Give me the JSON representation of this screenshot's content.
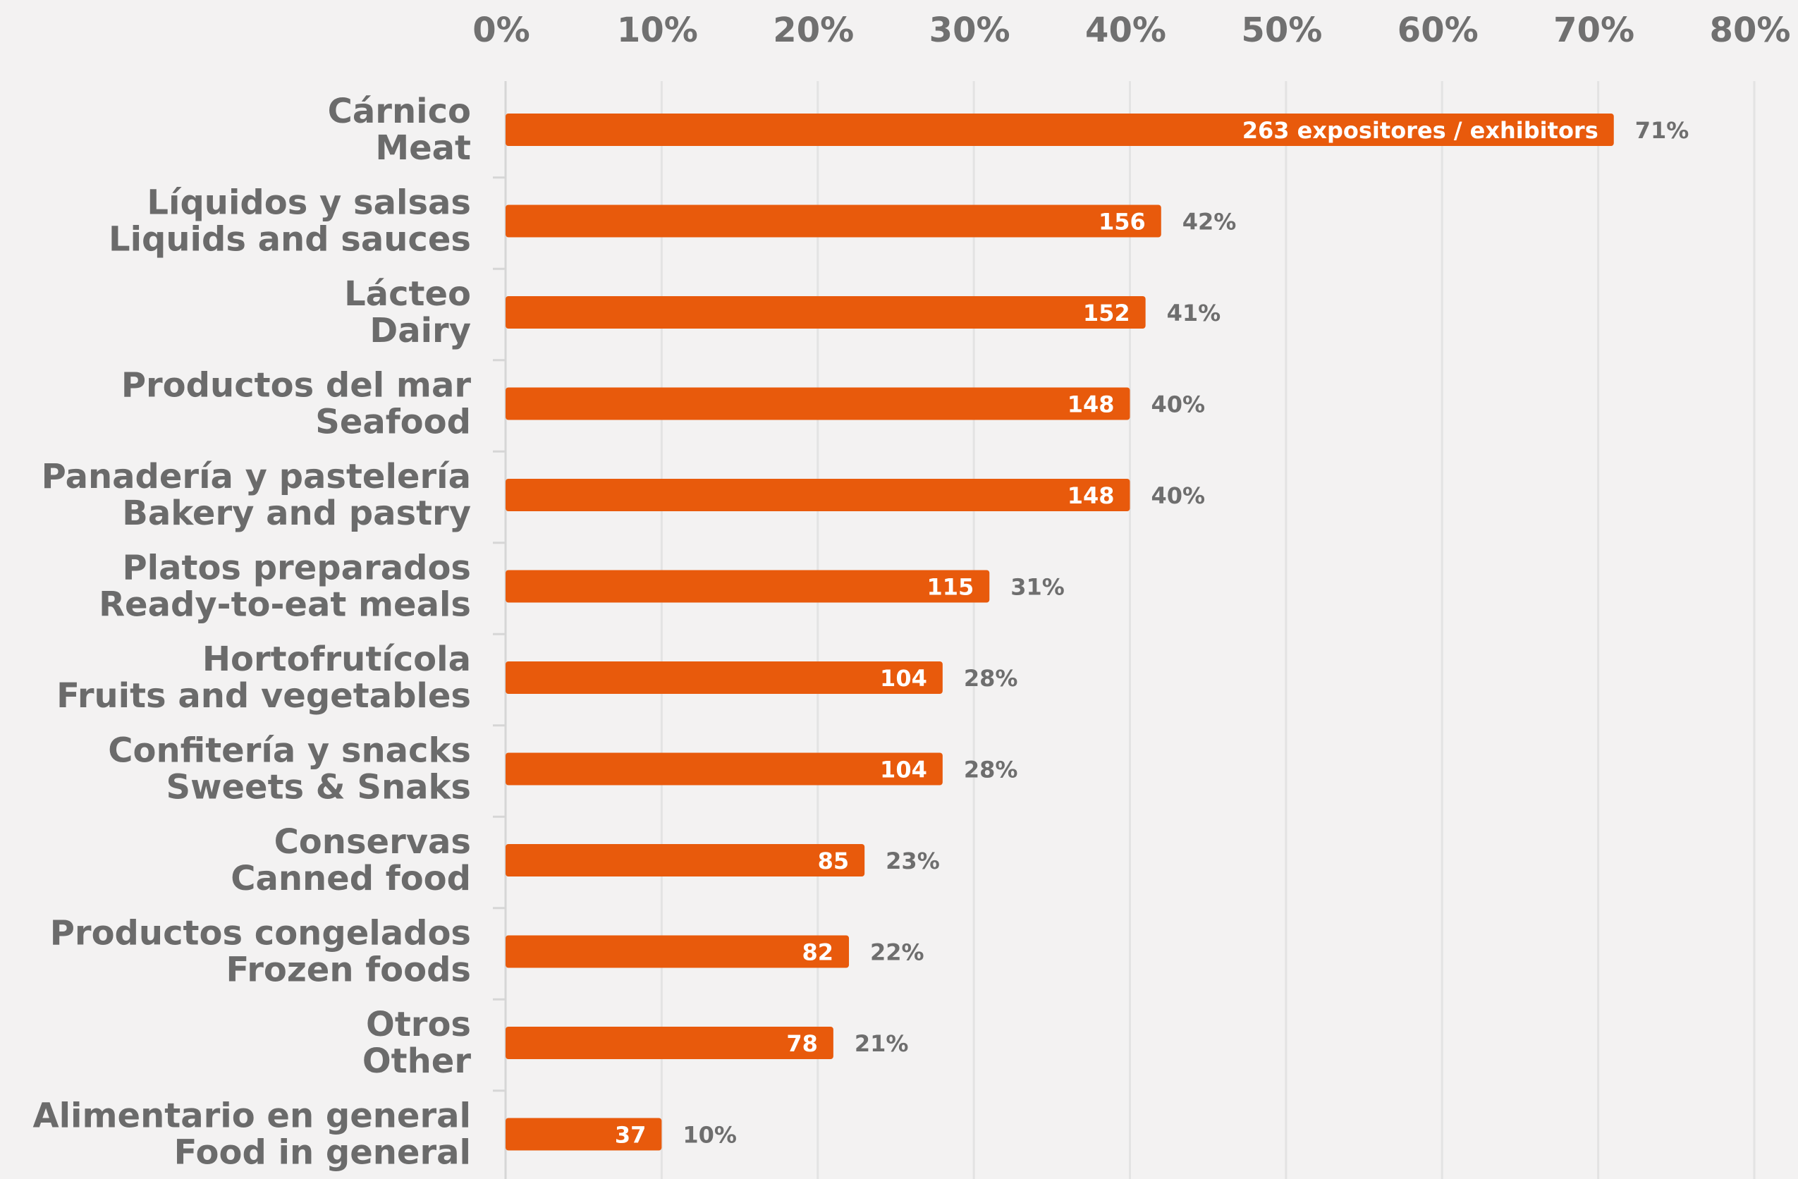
{
  "chart_data": {
    "type": "bar",
    "orientation": "horizontal",
    "x_axis": {
      "min": 0,
      "max": 80,
      "ticks": [
        "0%",
        "10%",
        "20%",
        "30%",
        "40%",
        "50%",
        "60%",
        "70%",
        "80%"
      ],
      "position": "top"
    },
    "grid": true,
    "bar_color": "#e85a0c",
    "categories": [
      {
        "es": "Cárnico",
        "en": "Meat",
        "value_pct": 71,
        "pct_label": "71%",
        "count_label": "263 expositores / exhibitors"
      },
      {
        "es": "Líquidos y salsas",
        "en": "Liquids and sauces",
        "value_pct": 42,
        "pct_label": "42%",
        "count_label": "156"
      },
      {
        "es": "Lácteo",
        "en": "Dairy",
        "value_pct": 41,
        "pct_label": "41%",
        "count_label": "152"
      },
      {
        "es": "Productos del mar",
        "en": "Seafood",
        "value_pct": 40,
        "pct_label": "40%",
        "count_label": "148"
      },
      {
        "es": "Panadería y pastelería",
        "en": "Bakery and pastry",
        "value_pct": 40,
        "pct_label": "40%",
        "count_label": "148"
      },
      {
        "es": "Platos preparados",
        "en": "Ready-to-eat meals",
        "value_pct": 31,
        "pct_label": "31%",
        "count_label": "115"
      },
      {
        "es": "Hortofrutícola",
        "en": "Fruits and vegetables",
        "value_pct": 28,
        "pct_label": "28%",
        "count_label": "104"
      },
      {
        "es": "Confitería y snacks",
        "en": "Sweets & Snaks",
        "value_pct": 28,
        "pct_label": "28%",
        "count_label": "104"
      },
      {
        "es": "Conservas",
        "en": "Canned food",
        "value_pct": 23,
        "pct_label": "23%",
        "count_label": "85"
      },
      {
        "es": "Productos congelados",
        "en": "Frozen foods",
        "value_pct": 22,
        "pct_label": "22%",
        "count_label": "82"
      },
      {
        "es": "Otros",
        "en": "Other",
        "value_pct": 21,
        "pct_label": "21%",
        "count_label": "78"
      },
      {
        "es": "Alimentario en general",
        "en": "Food in general",
        "value_pct": 10,
        "pct_label": "10%",
        "count_label": "37"
      }
    ]
  }
}
